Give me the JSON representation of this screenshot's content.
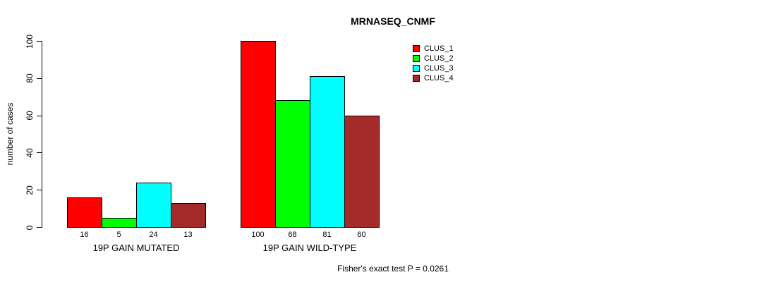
{
  "title": "MRNASEQ_CNMF",
  "footer": "Fisher's exact test P = 0.0261",
  "chart_data": {
    "type": "bar",
    "title": "MRNASEQ_CNMF",
    "xlabel": "",
    "ylabel": "number of cases",
    "ylim": [
      0,
      100
    ],
    "yticks": [
      0,
      20,
      40,
      60,
      80,
      100
    ],
    "grid": false,
    "legend_position": "top-right",
    "categories": [
      "19P GAIN MUTATED",
      "19P GAIN WILD-TYPE"
    ],
    "series": [
      {
        "name": "CLUS_1",
        "color": "#FF0000",
        "values": [
          16,
          100
        ]
      },
      {
        "name": "CLUS_2",
        "color": "#00FF00",
        "values": [
          5,
          68
        ]
      },
      {
        "name": "CLUS_3",
        "color": "#00FFFF",
        "values": [
          24,
          81
        ]
      },
      {
        "name": "CLUS_4",
        "color": "#A52A2A",
        "values": [
          13,
          60
        ]
      }
    ],
    "bar_value_labels": [
      [
        "16",
        "5",
        "24",
        "13"
      ],
      [
        "100",
        "68",
        "81",
        "60"
      ]
    ],
    "annotation": "Fisher's exact test P = 0.0261"
  }
}
